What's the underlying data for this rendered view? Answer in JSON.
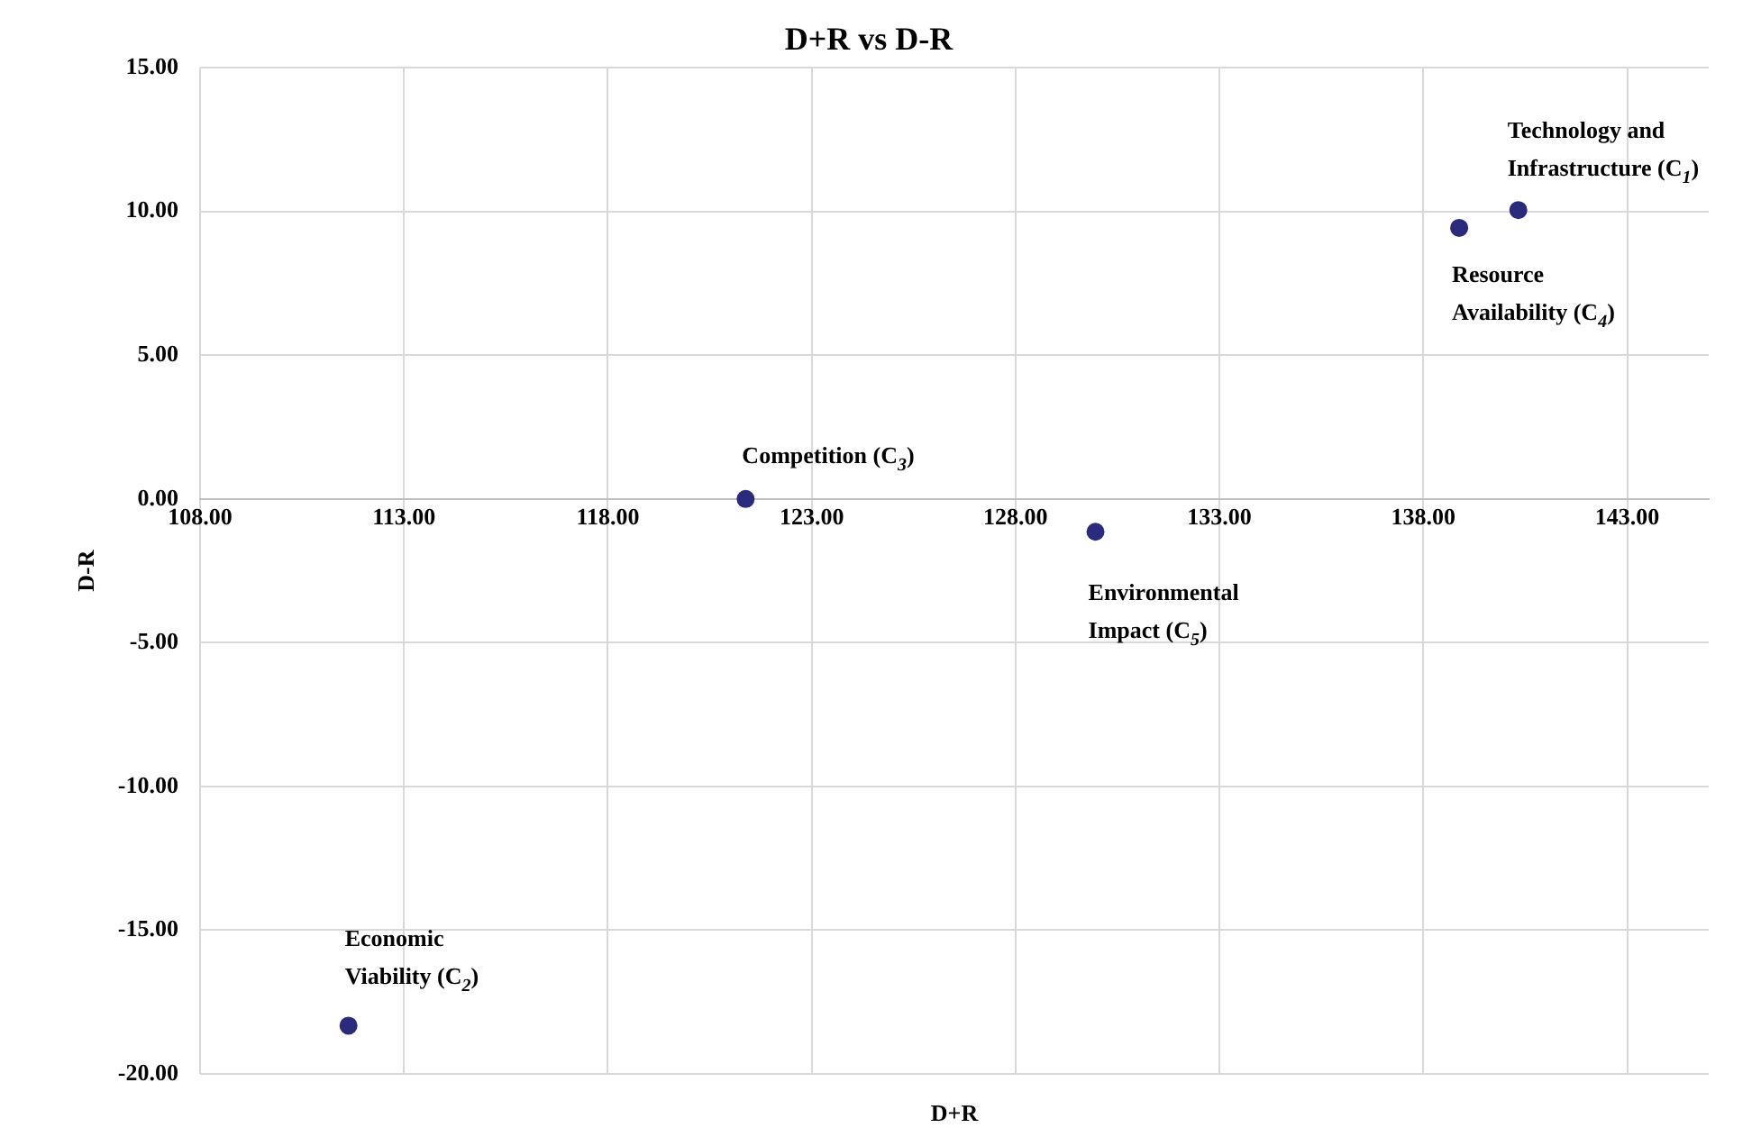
{
  "chart_data": {
    "type": "scatter",
    "title": "D+R vs D-R",
    "xlabel": "D+R",
    "ylabel": "D-R",
    "x": [
      140.33,
      111.64,
      121.38,
      138.88,
      129.96
    ],
    "series": [
      {
        "color": "#2b2b7e",
        "values": [
          10.05,
          -18.32,
          0.0,
          9.43,
          -1.14
        ]
      }
    ],
    "xlim": [
      108,
      145
    ],
    "xticks": [
      {
        "value": 108,
        "label": "108.00"
      },
      {
        "value": 113,
        "label": "113.00"
      },
      {
        "value": 118,
        "label": "118.00"
      },
      {
        "value": 123,
        "label": "123.00"
      },
      {
        "value": 128,
        "label": "128.00"
      },
      {
        "value": 133,
        "label": "133.00"
      },
      {
        "value": 138,
        "label": "138.00"
      },
      {
        "value": 143,
        "label": "143.00"
      }
    ],
    "ylim": [
      -20,
      15
    ],
    "yticks": [
      {
        "value": -20,
        "label": "-20.00"
      },
      {
        "value": -15,
        "label": "-15.00"
      },
      {
        "value": -10,
        "label": "-10.00"
      },
      {
        "value": -5,
        "label": "-5.00"
      },
      {
        "value": 0,
        "label": "0.00"
      },
      {
        "value": 5,
        "label": "5.00"
      },
      {
        "value": 10,
        "label": "10.00"
      },
      {
        "value": 15,
        "label": "15.00"
      }
    ],
    "annotations": [
      {
        "text": "Technology and Infrastructure (C$_{1}$)",
        "x": 140.33,
        "y": 10.05
      },
      {
        "text": "Economic Viability (C$_{2}$)",
        "x": 111.64,
        "y": -18.32
      },
      {
        "text": "Competition (C$_{3}$)",
        "x": 121.38,
        "y": 0.0
      },
      {
        "text": "Resource Availability (C$_{4}$)",
        "x": 138.88,
        "y": 9.43
      },
      {
        "text": "Environmental Impact (C$_{5}$)",
        "x": 129.96,
        "y": -1.14
      }
    ],
    "grid": true,
    "legend": false,
    "marker": "circle"
  }
}
